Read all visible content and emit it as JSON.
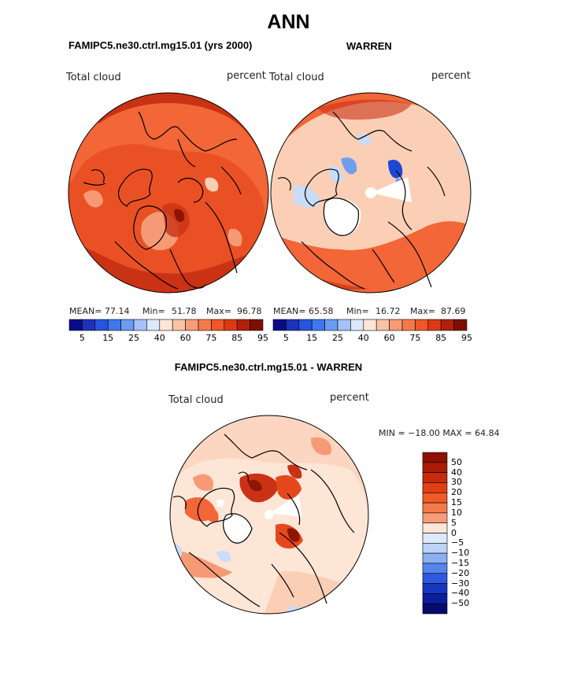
{
  "title": "ANN",
  "panels": [
    {
      "title": "FAMIPC5.ne30.ctrl.mg15.01 (yrs 2000)",
      "variable_label": "Total cloud",
      "units_label": "percent",
      "mean_label": "MEAN=",
      "mean_value": "77.14",
      "min_label": "Min=",
      "min_value": "51.78",
      "max_label": "Max=",
      "max_value": "96.78"
    },
    {
      "title": "WARREN",
      "variable_label": "Total cloud",
      "units_label": "percent",
      "mean_label": "MEAN=",
      "mean_value": "65.58",
      "min_label": "Min=",
      "min_value": "16.72",
      "max_label": "Max=",
      "max_value": "87.69"
    },
    {
      "title": "FAMIPC5.ne30.ctrl.mg15.01 - WARREN",
      "variable_label": "Total cloud",
      "units_label": "percent",
      "minmax_text": "MIN = −18.00 MAX =   64.84"
    }
  ],
  "colorbar_top": {
    "tick_labels": [
      "5",
      "15",
      "25",
      "40",
      "60",
      "75",
      "85",
      "95"
    ],
    "colors": [
      "#0b0b8a",
      "#1b33b8",
      "#2854de",
      "#3f77ee",
      "#6a9cf2",
      "#a4c2f6",
      "#dce9fb",
      "#fde6d7",
      "#fbc3a6",
      "#f89c77",
      "#f47a4c",
      "#ef5628",
      "#dc3a12",
      "#b22009",
      "#7e0e02"
    ]
  },
  "colorbar_diff": {
    "labels": [
      "50",
      "40",
      "30",
      "20",
      "15",
      "10",
      "5",
      "0",
      "−5",
      "−10",
      "−15",
      "−20",
      "−30",
      "−40",
      "−50"
    ],
    "colors": [
      "#8c1102",
      "#ab1c06",
      "#c82b0b",
      "#e23e14",
      "#f15a27",
      "#f47a4c",
      "#f89c77",
      "#fde6d7",
      "#dde9fa",
      "#bbd3f6",
      "#8aaff2",
      "#5585ec",
      "#2e58e2",
      "#1838c4",
      "#0d1e9d",
      "#060b70"
    ]
  },
  "map_colors": {
    "deep": "#c93214",
    "mid": "#e6481d",
    "orange": "#f26637",
    "salmon": "#f69a76",
    "pale": "#fbcfb6",
    "cream": "#fde6d6",
    "lightblue": "#c9dcf8",
    "blue": "#6e9ef0",
    "darkblue": "#1f47d6",
    "darkred": "#8f1404",
    "white": "#ffffff",
    "coast": "#000000"
  }
}
